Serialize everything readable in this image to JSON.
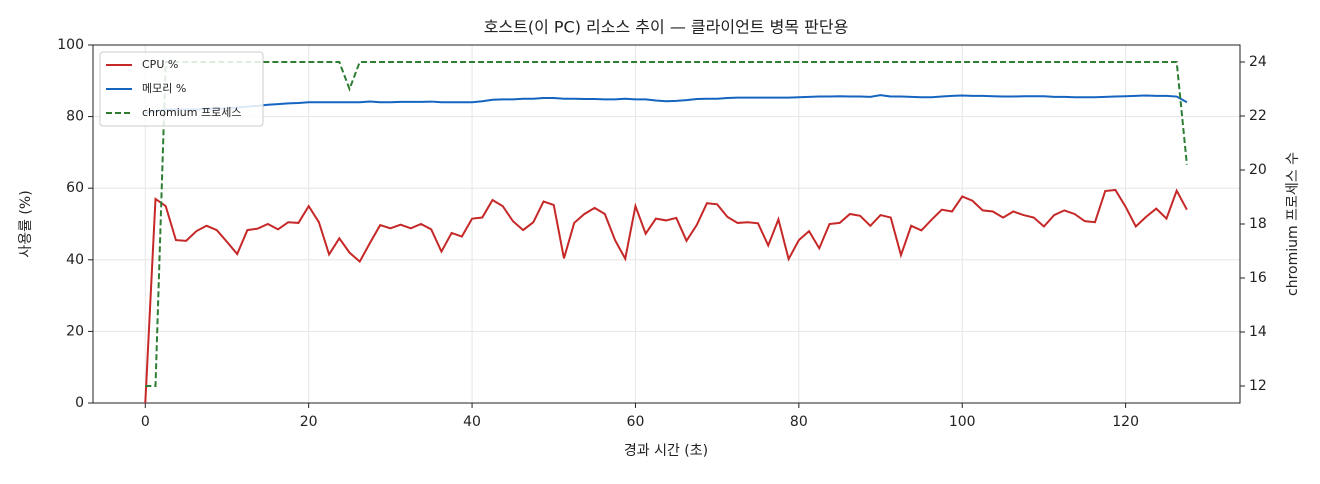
{
  "chart_data": {
    "type": "line",
    "title": "호스트(이 PC) 리소스 추이 — 클라이언트 병목 판단용",
    "x_label": "경과 시간 (초)",
    "y_label": "사용률 (%)",
    "y2_label": "chromium 프로세스 수",
    "x": [
      0,
      1.25,
      2.5,
      3.75,
      5,
      6.25,
      7.5,
      8.75,
      10,
      11.25,
      12.5,
      13.75,
      15,
      16.25,
      17.5,
      18.75,
      20,
      21.25,
      22.5,
      23.75,
      25,
      26.25,
      27.5,
      28.75,
      30,
      31.25,
      32.5,
      33.75,
      35,
      36.25,
      37.5,
      38.75,
      40,
      41.25,
      42.5,
      43.75,
      45,
      46.25,
      47.5,
      48.75,
      50,
      51.25,
      52.5,
      53.75,
      55,
      56.25,
      57.5,
      58.75,
      60,
      61.25,
      62.5,
      63.75,
      65,
      66.25,
      67.5,
      68.75,
      70,
      71.25,
      72.5,
      73.75,
      75,
      76.25,
      77.5,
      78.75,
      80,
      81.25,
      82.5,
      83.75,
      85,
      86.25,
      87.5,
      88.75,
      90,
      91.25,
      92.5,
      93.75,
      95,
      96.25,
      97.5,
      98.75,
      100,
      101.25,
      102.5,
      103.75,
      105,
      106.25,
      107.5,
      108.75,
      110,
      111.25,
      112.5,
      113.75,
      115,
      116.25,
      117.5,
      118.75,
      120,
      121.25,
      122.5,
      123.75,
      125,
      126.25,
      127.5
    ],
    "series": [
      {
        "name": "CPU %",
        "color": "#c62828",
        "dash": false,
        "values": [
          0,
          57,
          55,
          45.5,
          45.3,
          48,
          49.5,
          48.3,
          45,
          41.6,
          48.3,
          48.7,
          50,
          48.5,
          50.5,
          50.3,
          55,
          50.5,
          41.5,
          46,
          42,
          39.5,
          44.7,
          49.7,
          48.8,
          49.8,
          48.8,
          50,
          48.5,
          42.3,
          47.5,
          46.5,
          51.5,
          51.8,
          56.7,
          55,
          50.8,
          48.3,
          50.5,
          56.3,
          55.3,
          40.4,
          50.3,
          52.8,
          54.5,
          52.8,
          45.5,
          40.3,
          55,
          47.3,
          51.5,
          51,
          51.7,
          45.3,
          49.7,
          55.8,
          55.5,
          52,
          50.3,
          50.5,
          50.2,
          44,
          51.3,
          40.2,
          45.5,
          48,
          43.2,
          50,
          50.3,
          52.8,
          52.3,
          49.5,
          52.5,
          51.8,
          41.3,
          49.5,
          48.2,
          51.2,
          54,
          53.5,
          57.7,
          56.5,
          53.8,
          53.5,
          51.8,
          53.5,
          52.5,
          51.8,
          49.3,
          52.5,
          53.8,
          52.8,
          50.8,
          50.5,
          59.2,
          59.5,
          54.8,
          49.3,
          52,
          54.3,
          51.5,
          59.3,
          54
        ]
      },
      {
        "name": "메모리 %",
        "color": "#1565c0",
        "dash": false,
        "values": [
          81,
          81.5,
          82,
          82,
          82,
          82,
          82.2,
          82.2,
          82.3,
          82.5,
          82.8,
          83,
          83.3,
          83.5,
          83.7,
          83.8,
          84,
          84,
          84,
          84,
          84,
          84,
          84.2,
          84,
          84,
          84.1,
          84.1,
          84.1,
          84.2,
          84,
          84,
          84,
          84,
          84.3,
          84.7,
          84.8,
          84.8,
          85,
          85,
          85.2,
          85.2,
          85,
          85,
          84.9,
          84.9,
          84.8,
          84.8,
          85,
          84.8,
          84.8,
          84.5,
          84.3,
          84.4,
          84.6,
          84.9,
          85,
          85,
          85.2,
          85.3,
          85.3,
          85.3,
          85.3,
          85.3,
          85.3,
          85.4,
          85.5,
          85.6,
          85.6,
          85.7,
          85.6,
          85.6,
          85.5,
          86,
          85.6,
          85.6,
          85.5,
          85.4,
          85.4,
          85.6,
          85.8,
          85.9,
          85.8,
          85.8,
          85.7,
          85.6,
          85.6,
          85.7,
          85.7,
          85.7,
          85.5,
          85.5,
          85.4,
          85.4,
          85.4,
          85.5,
          85.6,
          85.7,
          85.8,
          85.9,
          85.8,
          85.8,
          85.6,
          84
        ]
      },
      {
        "name": "chromium 프로세스",
        "color": "#2e7d32",
        "dash": true,
        "axis": "y2",
        "values": [
          12,
          12,
          24,
          24,
          24,
          24,
          24,
          24,
          24,
          24,
          24,
          24,
          24,
          24,
          24,
          24,
          24,
          24,
          24,
          24,
          23,
          24,
          24,
          24,
          24,
          24,
          24,
          24,
          24,
          24,
          24,
          24,
          24,
          24,
          24,
          24,
          24,
          24,
          24,
          24,
          24,
          24,
          24,
          24,
          24,
          24,
          24,
          24,
          24,
          24,
          24,
          24,
          24,
          24,
          24,
          24,
          24,
          24,
          24,
          24,
          24,
          24,
          24,
          24,
          24,
          24,
          24,
          24,
          24,
          24,
          24,
          24,
          24,
          24,
          24,
          24,
          24,
          24,
          24,
          24,
          24,
          24,
          24,
          24,
          24,
          24,
          24,
          24,
          24,
          24,
          24,
          24,
          24,
          24,
          24,
          24,
          24,
          24,
          24,
          24,
          24,
          24,
          20.2
        ]
      }
    ],
    "xlim": [
      -6.4,
      134
    ],
    "xticks": [
      0,
      20,
      40,
      60,
      80,
      100,
      120
    ],
    "ylim": [
      0,
      100
    ],
    "yticks": [
      0,
      20,
      40,
      60,
      80,
      100
    ],
    "y2lim": [
      11.37,
      24.63
    ],
    "y2ticks": [
      12,
      14,
      16,
      18,
      20,
      22,
      24
    ],
    "grid": true,
    "legend": "upper left"
  }
}
